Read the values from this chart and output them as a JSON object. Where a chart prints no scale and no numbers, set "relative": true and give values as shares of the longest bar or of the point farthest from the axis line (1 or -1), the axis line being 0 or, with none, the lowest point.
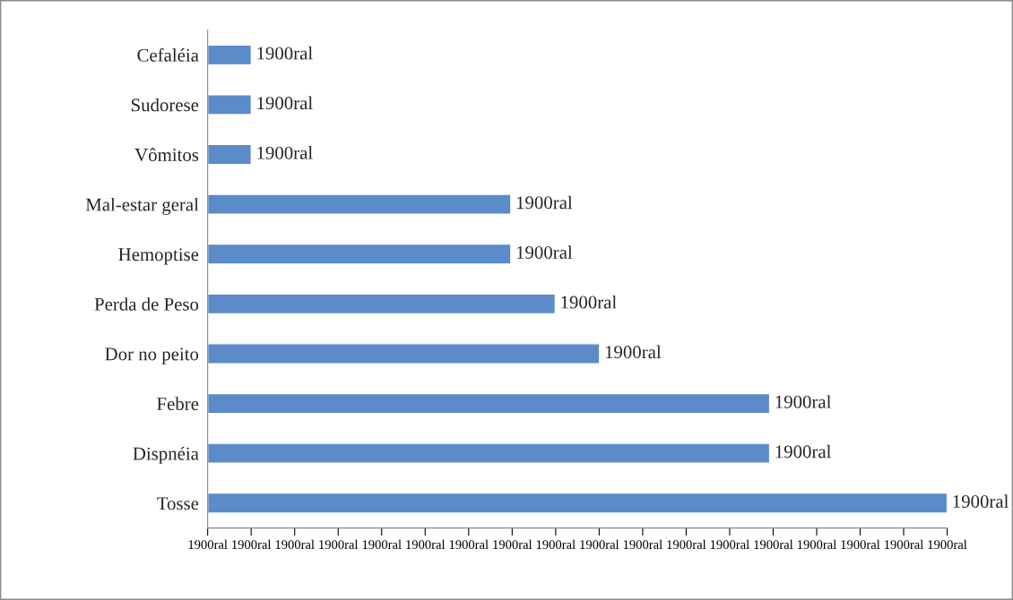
{
  "chart_data": {
    "type": "bar",
    "orientation": "horizontal",
    "relative": true,
    "categories": [
      "Cefaléia",
      "Sudorese",
      "Vômitos",
      "Mal-estar geral",
      "Hemoptise",
      "Perda de Peso",
      "Dor no peito",
      "Febre",
      "Dispnéia",
      "Tosse"
    ],
    "values": [
      0.059,
      0.059,
      0.059,
      0.41,
      0.41,
      0.47,
      0.53,
      0.76,
      0.76,
      1
    ],
    "color": "#5b8bc9",
    "annotations": [
      "1900ral",
      "1900ral",
      "1900ral",
      "1900ral",
      "1900ral",
      "1900ral",
      "1900ral",
      "1900ral",
      "1900ral",
      "1900ral",
      "1900ral",
      "1900ral",
      "1900ral",
      "1900ral",
      "1900ral",
      "1900ral",
      "1900ral",
      "1900ral",
      {
        "text": "1900ral",
        "x": 0.059,
        "y": "Cefaléia"
      },
      {
        "text": "1900ral",
        "x": 0.059,
        "y": "Sudorese"
      },
      {
        "text": "1900ral",
        "x": 0.059,
        "y": "Vômitos"
      },
      {
        "text": "1900ral",
        "x": 0.41,
        "y": "Mal-estar geral"
      },
      {
        "text": "1900ral",
        "x": 0.41,
        "y": "Hemoptise"
      },
      {
        "text": "1900ral",
        "x": 0.47,
        "y": "Perda de Peso"
      },
      {
        "text": "1900ral",
        "x": 0.53,
        "y": "Dor no peito"
      },
      {
        "text": "1900ral",
        "x": 0.76,
        "y": "Febre"
      },
      {
        "text": "1900ral",
        "x": 0.76,
        "y": "Dispnéia"
      },
      {
        "text": "1900ral",
        "x": 1,
        "y": "Tosse"
      }
    ],
    "grid": false
  }
}
